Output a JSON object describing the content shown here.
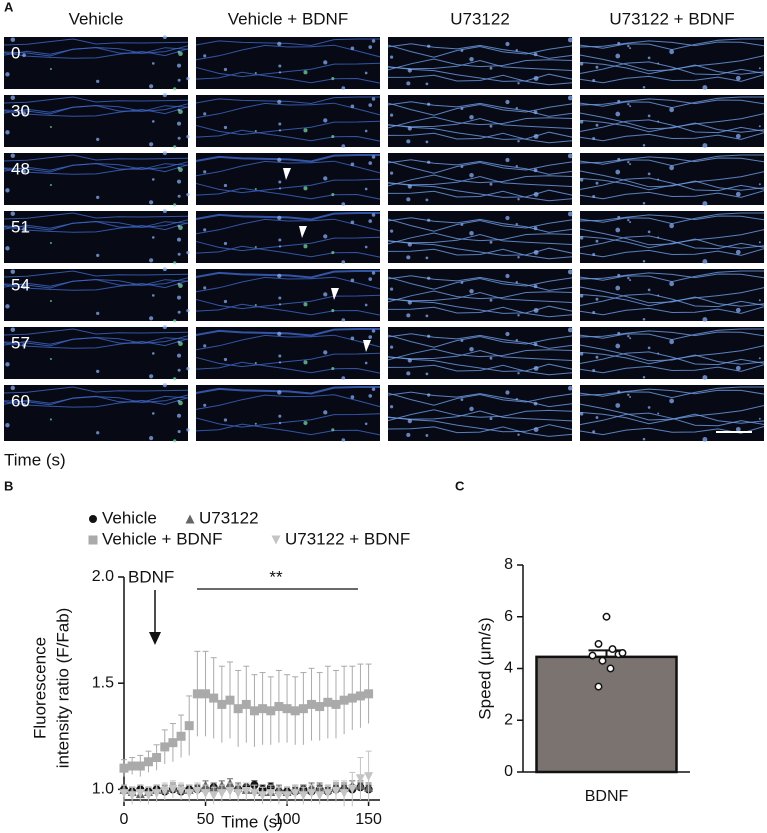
{
  "panel_a": {
    "label": "A",
    "columns": [
      "Vehicle",
      "Vehicle + BDNF",
      "U73122",
      "U73122 + BDNF"
    ],
    "rows": [
      "0",
      "30",
      "48",
      "51",
      "54",
      "57",
      "60"
    ],
    "xlabel": "Time (s)"
  },
  "chart_data": [
    {
      "type": "line",
      "panel_label": "B",
      "xlabel": "Time (s)",
      "ylabel": [
        "Fluorescence",
        "intensity ratio (F/Fab)"
      ],
      "annotations": [
        "BDNF",
        "**"
      ],
      "xlim": [
        0,
        157
      ],
      "xticks": [
        0,
        50,
        100,
        150
      ],
      "ylim": [
        0.95,
        2.0
      ],
      "yticks": [
        {
          "value": 1,
          "label": "1.0"
        },
        {
          "value": 1.5,
          "label": "1.5"
        },
        {
          "value": 2,
          "label": "2.0"
        }
      ],
      "x": [
        0,
        5,
        10,
        15,
        20,
        25,
        30,
        35,
        40,
        45,
        50,
        55,
        60,
        65,
        70,
        75,
        80,
        85,
        90,
        95,
        100,
        105,
        110,
        115,
        120,
        125,
        130,
        135,
        140,
        145,
        150
      ],
      "series": [
        {
          "name": "Vehicle",
          "color": "#111111",
          "marker": "circle",
          "values": [
            1.0,
            0.99,
            1.0,
            0.99,
            1.0,
            0.99,
            1.0,
            0.99,
            1.0,
            1.0,
            1.0,
            1.01,
            1.0,
            1.01,
            1.0,
            1.01,
            1.02,
            1.0,
            1.01,
            0.99,
            0.99,
            0.99,
            1.0,
            0.99,
            1.0,
            0.99,
            1.0,
            1.0,
            1.0,
            1.01,
            1.0
          ],
          "errors": [
            0.02,
            0.02,
            0.02,
            0.02,
            0.02,
            0.02,
            0.02,
            0.02,
            0.02,
            0.02,
            0.02,
            0.02,
            0.02,
            0.02,
            0.02,
            0.02,
            0.02,
            0.02,
            0.02,
            0.02,
            0.02,
            0.02,
            0.02,
            0.02,
            0.02,
            0.02,
            0.02,
            0.02,
            0.02,
            0.02,
            0.02
          ]
        },
        {
          "name": "U73122",
          "color": "#666666",
          "marker": "triangle",
          "values": [
            1.0,
            0.99,
            0.98,
            0.99,
            1.0,
            1.0,
            1.01,
            1.0,
            1.0,
            1.01,
            1.02,
            1.01,
            1.02,
            1.03,
            1.01,
            1.0,
            1.0,
            0.99,
            0.99,
            1.0,
            0.99,
            1.0,
            1.0,
            1.01,
            1.01,
            1.0,
            1.01,
            1.01,
            1.02,
            1.02,
            1.01
          ],
          "errors": [
            0.02,
            0.02,
            0.02,
            0.02,
            0.02,
            0.02,
            0.02,
            0.02,
            0.02,
            0.02,
            0.02,
            0.02,
            0.02,
            0.02,
            0.02,
            0.02,
            0.02,
            0.02,
            0.02,
            0.02,
            0.02,
            0.02,
            0.02,
            0.02,
            0.02,
            0.02,
            0.02,
            0.02,
            0.02,
            0.02,
            0.02
          ]
        },
        {
          "name": "Vehicle + BDNF",
          "color": "#aaaaaa",
          "marker": "square",
          "values": [
            1.1,
            1.11,
            1.11,
            1.13,
            1.15,
            1.2,
            1.22,
            1.25,
            1.3,
            1.45,
            1.45,
            1.43,
            1.4,
            1.42,
            1.38,
            1.4,
            1.37,
            1.38,
            1.37,
            1.39,
            1.38,
            1.37,
            1.38,
            1.4,
            1.39,
            1.41,
            1.4,
            1.42,
            1.43,
            1.44,
            1.45
          ],
          "errors": [
            0.04,
            0.04,
            0.05,
            0.05,
            0.06,
            0.08,
            0.09,
            0.1,
            0.14,
            0.2,
            0.2,
            0.19,
            0.18,
            0.18,
            0.18,
            0.18,
            0.17,
            0.17,
            0.16,
            0.17,
            0.16,
            0.16,
            0.17,
            0.17,
            0.16,
            0.17,
            0.16,
            0.16,
            0.15,
            0.15,
            0.14
          ]
        },
        {
          "name": "U73122 + BDNF",
          "color": "#c4c4c4",
          "marker": "triangle-down",
          "values": [
            0.98,
            0.97,
            0.98,
            0.97,
            0.98,
            0.99,
            1.0,
            0.99,
            0.98,
            0.99,
            0.98,
            0.97,
            0.98,
            0.99,
            0.98,
            0.99,
            0.98,
            0.97,
            0.98,
            0.97,
            0.97,
            0.98,
            0.97,
            0.98,
            0.97,
            0.98,
            0.99,
            0.98,
            1.0,
            1.05,
            1.06
          ],
          "errors": [
            0.04,
            0.04,
            0.04,
            0.04,
            0.04,
            0.04,
            0.04,
            0.04,
            0.04,
            0.04,
            0.04,
            0.04,
            0.04,
            0.04,
            0.04,
            0.04,
            0.04,
            0.04,
            0.04,
            0.04,
            0.04,
            0.04,
            0.04,
            0.04,
            0.04,
            0.04,
            0.05,
            0.06,
            0.08,
            0.1,
            0.12
          ]
        }
      ]
    },
    {
      "type": "bar",
      "panel_label": "C",
      "ylabel": "Speed (μm/s)",
      "categories": [
        "BDNF"
      ],
      "values": [
        4.45
      ],
      "errors": [
        0.25
      ],
      "color": "#7a7370",
      "points": [
        6.0,
        4.95,
        4.75,
        4.5,
        4.55,
        4.3,
        4.6,
        4.0,
        3.3
      ],
      "ylim": [
        0,
        8
      ],
      "yticks": [
        0,
        2,
        4,
        6,
        8
      ]
    }
  ]
}
